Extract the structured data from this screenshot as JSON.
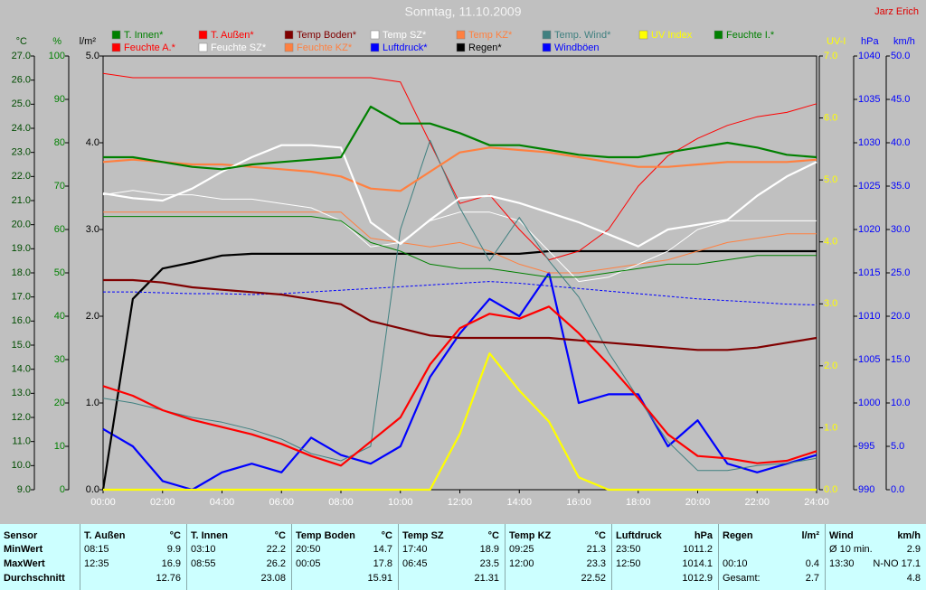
{
  "chart_data": {
    "type": "line",
    "title": "Sonntag, 11.10.2009",
    "author": "Jarz Erich",
    "x": [
      0,
      1,
      2,
      3,
      4,
      5,
      6,
      7,
      8,
      9,
      10,
      11,
      12,
      13,
      14,
      15,
      16,
      17,
      18,
      19,
      20,
      21,
      22,
      23,
      24
    ],
    "xlim": [
      0,
      24
    ],
    "xticks": [
      {
        "value": 0,
        "label": "00:00"
      },
      {
        "value": 2,
        "label": "02:00"
      },
      {
        "value": 4,
        "label": "04:00"
      },
      {
        "value": 6,
        "label": "06:00"
      },
      {
        "value": 8,
        "label": "08:00"
      },
      {
        "value": 10,
        "label": "10:00"
      },
      {
        "value": 12,
        "label": "12:00"
      },
      {
        "value": 14,
        "label": "14:00"
      },
      {
        "value": 16,
        "label": "16:00"
      },
      {
        "value": 18,
        "label": "18:00"
      },
      {
        "value": 20,
        "label": "20:00"
      },
      {
        "value": 22,
        "label": "22:00"
      },
      {
        "value": 24,
        "label": "24:00"
      }
    ],
    "axes": [
      {
        "label": "°C",
        "side": "left",
        "color": "#004c00",
        "lim": [
          9,
          27
        ],
        "ticks": [
          {
            "value": 9,
            "label": "9.0"
          },
          {
            "value": 10,
            "label": "10.0"
          },
          {
            "value": 11,
            "label": "11.0"
          },
          {
            "value": 12,
            "label": "12.0"
          },
          {
            "value": 13,
            "label": "13.0"
          },
          {
            "value": 14,
            "label": "14.0"
          },
          {
            "value": 15,
            "label": "15.0"
          },
          {
            "value": 16,
            "label": "16.0"
          },
          {
            "value": 17,
            "label": "17.0"
          },
          {
            "value": 18,
            "label": "18.0"
          },
          {
            "value": 19,
            "label": "19.0"
          },
          {
            "value": 20,
            "label": "20.0"
          },
          {
            "value": 21,
            "label": "21.0"
          },
          {
            "value": 22,
            "label": "22.0"
          },
          {
            "value": 23,
            "label": "23.0"
          },
          {
            "value": 24,
            "label": "24.0"
          },
          {
            "value": 25,
            "label": "25.0"
          },
          {
            "value": 26,
            "label": "26.0"
          },
          {
            "value": 27,
            "label": "27.0"
          }
        ]
      },
      {
        "label": "%",
        "side": "left",
        "color": "#008000",
        "lim": [
          0,
          100
        ],
        "ticks": [
          0,
          10,
          20,
          30,
          40,
          50,
          60,
          70,
          80,
          90,
          100
        ]
      },
      {
        "label": "l/m²",
        "side": "left",
        "color": "#000000",
        "lim": [
          0,
          5
        ],
        "ticks": [
          {
            "value": 0,
            "label": "0.0"
          },
          {
            "value": 1,
            "label": "1.0"
          },
          {
            "value": 2,
            "label": "2.0"
          },
          {
            "value": 3,
            "label": "3.0"
          },
          {
            "value": 4,
            "label": "4.0"
          },
          {
            "value": 5,
            "label": "5.0"
          }
        ]
      },
      {
        "label": "UV-I",
        "side": "right",
        "color": "#ffff00",
        "lim": [
          0,
          7
        ],
        "ticks": [
          {
            "value": 0,
            "label": "0.0"
          },
          {
            "value": 1,
            "label": "1.0"
          },
          {
            "value": 2,
            "label": "2.0"
          },
          {
            "value": 3,
            "label": "3.0"
          },
          {
            "value": 4,
            "label": "4.0"
          },
          {
            "value": 5,
            "label": "5.0"
          },
          {
            "value": 6,
            "label": "6.0"
          },
          {
            "value": 7,
            "label": "7.0"
          }
        ]
      },
      {
        "label": "hPa",
        "side": "right",
        "color": "#0000ff",
        "lim": [
          990,
          1040
        ],
        "ticks": [
          990,
          995,
          1000,
          1005,
          1010,
          1015,
          1020,
          1025,
          1030,
          1035,
          1040
        ]
      },
      {
        "label": "km/h",
        "side": "right",
        "color": "#0000ff",
        "lim": [
          0,
          50
        ],
        "ticks": [
          {
            "value": 0,
            "label": "0.0"
          },
          {
            "value": 5,
            "label": "5.0"
          },
          {
            "value": 10,
            "label": "10.0"
          },
          {
            "value": 15,
            "label": "15.0"
          },
          {
            "value": 20,
            "label": "20.0"
          },
          {
            "value": 25,
            "label": "25.0"
          },
          {
            "value": 30,
            "label": "30.0"
          },
          {
            "value": 35,
            "label": "35.0"
          },
          {
            "value": 40,
            "label": "40.0"
          },
          {
            "value": 45,
            "label": "45.0"
          },
          {
            "value": 50,
            "label": "50.0"
          }
        ]
      }
    ],
    "series": [
      {
        "name": "T. Innen*",
        "color": "#008000",
        "axis": 0,
        "style": "thick",
        "values": [
          22.8,
          22.8,
          22.6,
          22.4,
          22.3,
          22.5,
          22.6,
          22.7,
          22.8,
          24.9,
          24.2,
          24.2,
          23.8,
          23.3,
          23.3,
          23.1,
          22.9,
          22.8,
          22.8,
          23.0,
          23.2,
          23.4,
          23.2,
          22.9,
          22.8
        ]
      },
      {
        "name": "T. Außen*",
        "color": "#ff0000",
        "axis": 0,
        "style": "thick",
        "values": [
          13.3,
          12.9,
          12.3,
          11.9,
          11.6,
          11.3,
          10.9,
          10.4,
          10.0,
          11.0,
          12.0,
          14.2,
          15.7,
          16.3,
          16.1,
          16.6,
          15.5,
          14.2,
          12.8,
          11.3,
          10.4,
          10.3,
          10.1,
          10.2,
          10.6
        ]
      },
      {
        "name": "Temp Boden*",
        "color": "#800000",
        "axis": 0,
        "style": "thick",
        "values": [
          17.7,
          17.7,
          17.6,
          17.4,
          17.3,
          17.2,
          17.1,
          16.9,
          16.7,
          16.0,
          15.7,
          15.4,
          15.3,
          15.3,
          15.3,
          15.3,
          15.2,
          15.1,
          15.0,
          14.9,
          14.8,
          14.8,
          14.9,
          15.1,
          15.3
        ]
      },
      {
        "name": "Temp SZ*",
        "color": "#ffffff",
        "axis": 0,
        "style": "thick",
        "values": [
          21.3,
          21.1,
          21.0,
          21.5,
          22.2,
          22.8,
          23.3,
          23.3,
          23.2,
          20.1,
          19.2,
          20.2,
          21.1,
          21.2,
          20.9,
          20.5,
          20.1,
          19.6,
          19.1,
          19.8,
          20.0,
          20.2,
          21.2,
          22.0,
          22.6
        ]
      },
      {
        "name": "Temp KZ*",
        "color": "#ff8040",
        "axis": 0,
        "style": "thick",
        "values": [
          22.6,
          22.7,
          22.6,
          22.5,
          22.5,
          22.4,
          22.3,
          22.2,
          22.0,
          21.5,
          21.4,
          22.2,
          23.0,
          23.2,
          23.1,
          23.0,
          22.8,
          22.6,
          22.4,
          22.4,
          22.5,
          22.6,
          22.6,
          22.6,
          22.7
        ]
      },
      {
        "name": "Temp. Wind*",
        "color": "#408080",
        "axis": 0,
        "style": "thin",
        "values": [
          12.8,
          12.6,
          12.3,
          12.0,
          11.8,
          11.5,
          11.1,
          10.5,
          10.2,
          10.8,
          19.8,
          23.5,
          20.7,
          18.5,
          20.3,
          18.5,
          17.0,
          14.7,
          12.8,
          11.0,
          9.8,
          9.8,
          10.0,
          10.1,
          10.3
        ]
      },
      {
        "name": "UV Index",
        "color": "#ffff00",
        "axis": 3,
        "style": "thick",
        "values": [
          0,
          0,
          0,
          0,
          0,
          0,
          0,
          0,
          0,
          0,
          0,
          0,
          0.9,
          2.2,
          1.6,
          1.1,
          0.2,
          0,
          0,
          0,
          0,
          0,
          0,
          0,
          0
        ]
      },
      {
        "name": "Feuchte I.*",
        "color": "#008000",
        "axis": 1,
        "style": "thin",
        "values": [
          63,
          63,
          63,
          63,
          63,
          63,
          63,
          63,
          62,
          57,
          55,
          52,
          51,
          51,
          50,
          49,
          49,
          50,
          51,
          52,
          52,
          53,
          54,
          54,
          54
        ]
      },
      {
        "name": "Feuchte A.*",
        "color": "#ff0000",
        "axis": 1,
        "style": "thin",
        "values": [
          96,
          95,
          95,
          95,
          95,
          95,
          95,
          95,
          95,
          95,
          94,
          80,
          66,
          68,
          60,
          53,
          55,
          60,
          70,
          77,
          81,
          84,
          86,
          87,
          89
        ]
      },
      {
        "name": "Feuchte SZ*",
        "color": "#ffffff",
        "axis": 1,
        "style": "thin",
        "values": [
          68,
          69,
          68,
          68,
          67,
          67,
          66,
          65,
          62,
          56,
          57,
          62,
          64,
          64,
          62,
          55,
          48,
          49,
          52,
          55,
          60,
          62,
          62,
          62,
          62
        ]
      },
      {
        "name": "Feuchte KZ*",
        "color": "#ff8040",
        "axis": 1,
        "style": "thin",
        "values": [
          64,
          64,
          64,
          64,
          64,
          64,
          64,
          64,
          64,
          58,
          57,
          56,
          57,
          55,
          52,
          50,
          50,
          51,
          52,
          53,
          55,
          57,
          58,
          59,
          59
        ]
      },
      {
        "name": "Luftdruck*",
        "color": "#0000ff",
        "axis": 4,
        "style": "dashed",
        "values": [
          1012.8,
          1012.8,
          1012.7,
          1012.6,
          1012.6,
          1012.5,
          1012.6,
          1012.8,
          1013.0,
          1013.2,
          1013.4,
          1013.6,
          1013.8,
          1014.0,
          1013.8,
          1013.5,
          1013.2,
          1012.9,
          1012.6,
          1012.3,
          1012.0,
          1011.8,
          1011.6,
          1011.4,
          1011.3
        ]
      },
      {
        "name": "Regen*",
        "color": "#000000",
        "axis": 2,
        "style": "thick",
        "values": [
          0,
          2.2,
          2.55,
          2.62,
          2.7,
          2.72,
          2.72,
          2.72,
          2.72,
          2.72,
          2.72,
          2.72,
          2.72,
          2.72,
          2.72,
          2.75,
          2.75,
          2.75,
          2.75,
          2.75,
          2.75,
          2.75,
          2.75,
          2.75,
          2.75
        ]
      },
      {
        "name": "Windböen",
        "color": "#0000ff",
        "axis": 5,
        "style": "thick",
        "values": [
          7,
          5,
          1,
          0,
          2,
          3,
          2,
          6,
          4,
          3,
          5,
          13,
          18,
          22,
          20,
          25,
          10,
          11,
          11,
          5,
          8,
          3,
          2,
          3,
          4
        ]
      }
    ]
  },
  "table": {
    "columns": [
      {
        "name": "Sensor"
      },
      {
        "name": "T. Außen",
        "unit": "°C"
      },
      {
        "name": "T. Innen",
        "unit": "°C"
      },
      {
        "name": "Temp Boden",
        "unit": "°C"
      },
      {
        "name": "Temp SZ",
        "unit": "°C"
      },
      {
        "name": "Temp KZ",
        "unit": "°C"
      },
      {
        "name": "Luftdruck",
        "unit": "hPa"
      },
      {
        "name": "Regen",
        "unit": "l/m²"
      },
      {
        "name": "Wind",
        "unit": "km/h"
      }
    ],
    "rows": [
      {
        "label": "MinWert",
        "cells": [
          {
            "time": "08:15",
            "value": "9.9"
          },
          {
            "time": "03:10",
            "value": "22.2"
          },
          {
            "time": "20:50",
            "value": "14.7"
          },
          {
            "time": "17:40",
            "value": "18.9"
          },
          {
            "time": "09:25",
            "value": "21.3"
          },
          {
            "time": "23:50",
            "value": "1011.2"
          },
          {},
          {
            "time": "Ø 10 min.",
            "value": "2.9"
          }
        ]
      },
      {
        "label": "MaxWert",
        "cells": [
          {
            "time": "12:35",
            "value": "16.9"
          },
          {
            "time": "08:55",
            "value": "26.2"
          },
          {
            "time": "00:05",
            "value": "17.8"
          },
          {
            "time": "06:45",
            "value": "23.5"
          },
          {
            "time": "12:00",
            "value": "23.3"
          },
          {
            "time": "12:50",
            "value": "1014.1"
          },
          {
            "time": "00:10",
            "value": "0.4"
          },
          {
            "time": "13:30",
            "value": "N-NO 17.1"
          }
        ]
      },
      {
        "label": "Durchschnitt",
        "cells": [
          {
            "value": "12.76"
          },
          {
            "value": "23.08"
          },
          {
            "value": "15.91"
          },
          {
            "value": "21.31"
          },
          {
            "value": "22.52"
          },
          {
            "value": "1012.9"
          },
          {
            "time": "Gesamt:",
            "value": "2.7"
          },
          {
            "value": "4.8"
          }
        ]
      }
    ]
  }
}
